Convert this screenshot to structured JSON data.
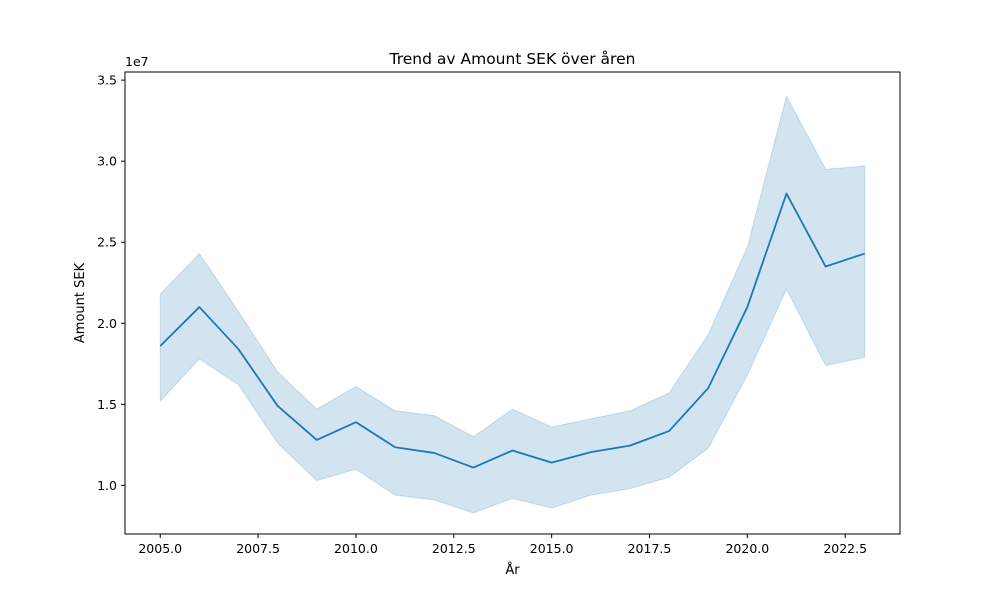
{
  "chart_data": {
    "type": "line",
    "title": "Trend av Amount SEK över åren",
    "xlabel": "År",
    "ylabel": "Amount SEK",
    "y_offset_label": "1e7",
    "xlim": [
      2004.1,
      2023.9
    ],
    "ylim": [
      7000000,
      35500000
    ],
    "x_ticks": [
      2005.0,
      2007.5,
      2010.0,
      2012.5,
      2015.0,
      2017.5,
      2020.0,
      2022.5
    ],
    "x_tick_labels": [
      "2005.0",
      "2007.5",
      "2010.0",
      "2012.5",
      "2015.0",
      "2017.5",
      "2020.0",
      "2022.5"
    ],
    "y_ticks": [
      10000000,
      15000000,
      20000000,
      25000000,
      30000000,
      35000000
    ],
    "y_tick_labels": [
      "1.0",
      "1.5",
      "2.0",
      "2.5",
      "3.0",
      "3.5"
    ],
    "grid": false,
    "line_color": "#1f77b4",
    "band_color": "#1f77b4",
    "x": [
      2005,
      2006,
      2007,
      2008,
      2009,
      2010,
      2011,
      2012,
      2013,
      2014,
      2015,
      2016,
      2017,
      2018,
      2019,
      2020,
      2021,
      2022,
      2023
    ],
    "series": [
      {
        "values": [
          18600000,
          21000000,
          18400000,
          14900000,
          12800000,
          13900000,
          12350000,
          12000000,
          11100000,
          12150000,
          11400000,
          12050000,
          12450000,
          13350000,
          16000000,
          21000000,
          28000000,
          23500000,
          24300000
        ],
        "ci_lower": [
          15200000,
          17800000,
          16200000,
          12600000,
          10300000,
          11000000,
          9400000,
          9100000,
          8300000,
          9200000,
          8600000,
          9400000,
          9800000,
          10500000,
          12300000,
          16800000,
          22100000,
          17400000,
          17900000
        ],
        "ci_upper": [
          21800000,
          24300000,
          20700000,
          17000000,
          14700000,
          16100000,
          14600000,
          14300000,
          13000000,
          14700000,
          13600000,
          14100000,
          14600000,
          15700000,
          19300000,
          24700000,
          34000000,
          29500000,
          29700000
        ]
      }
    ]
  }
}
